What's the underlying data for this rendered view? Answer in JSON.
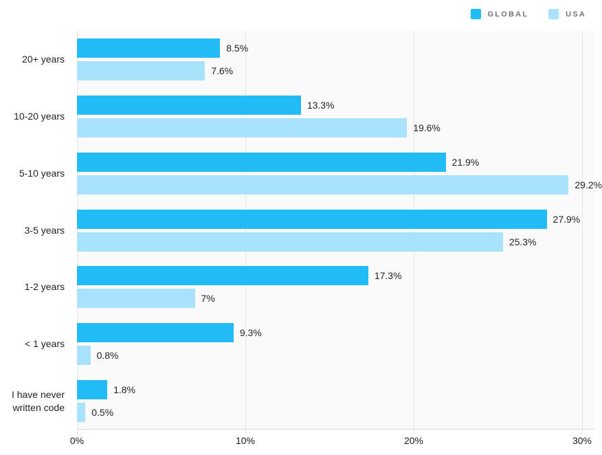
{
  "legend": [
    {
      "label": "GLOBAL",
      "color": "#21bbf6"
    },
    {
      "label": "USA",
      "color": "#a9e2fb"
    }
  ],
  "chart_data": {
    "type": "bar",
    "orientation": "horizontal",
    "categories": [
      "20+ years",
      "10-20 years",
      "5-10 years",
      "3-5 years",
      "1-2 years",
      "< 1 years",
      "I have never written code"
    ],
    "series": [
      {
        "name": "GLOBAL",
        "color": "#21bbf6",
        "values": [
          8.5,
          13.3,
          21.9,
          27.9,
          17.3,
          9.3,
          1.8
        ],
        "labels": [
          "8.5%",
          "13.3%",
          "21.9%",
          "27.9%",
          "17.3%",
          "9.3%",
          "1.8%"
        ]
      },
      {
        "name": "USA",
        "color": "#a9e2fb",
        "values": [
          7.6,
          19.6,
          29.2,
          25.3,
          7,
          0.8,
          0.5
        ],
        "labels": [
          "7.6%",
          "19.6%",
          "29.2%",
          "25.3%",
          "7%",
          "0.8%",
          "0.5%"
        ]
      }
    ],
    "x_axis": {
      "ticks": [
        "0%",
        "10%",
        "20%",
        "30%"
      ],
      "values": [
        0,
        10,
        20,
        30
      ],
      "max": 30
    },
    "grid": "vertical-only",
    "legend_position": "top-right",
    "colors": {
      "plot_background": "#fafafa",
      "gridline": "#e4e4e4",
      "axis_line": "#d9d9d9",
      "label_text": "#222226",
      "legend_text": "#73757a"
    }
  }
}
